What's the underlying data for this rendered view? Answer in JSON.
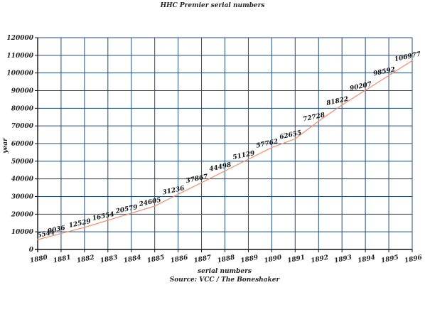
{
  "chart_data": {
    "type": "line",
    "title": "HHC Premier serial numbers",
    "xlabel": "serial numbers",
    "ylabel": "year",
    "source": "Source: VCC / The Boneshaker",
    "xlim": [
      1880,
      1896
    ],
    "ylim": [
      0,
      120000
    ],
    "x_ticks": [
      "1880",
      "1881",
      "1882",
      "1883",
      "1884",
      "1885",
      "1886",
      "1887",
      "1888",
      "1889",
      "1890",
      "1891",
      "1892",
      "1893",
      "1894",
      "1895",
      "1896"
    ],
    "y_ticks": [
      "0",
      "10000",
      "20000",
      "30000",
      "40000",
      "50000",
      "60000",
      "70000",
      "80000",
      "90000",
      "100000",
      "110000",
      "120000"
    ],
    "grid": true,
    "line_color": "#f08a6a",
    "grid_color": "#1f4e79",
    "series": [
      {
        "x": [
          1880,
          1881,
          1882,
          1883,
          1884,
          1885,
          1886,
          1887,
          1888,
          1889,
          1890,
          1891,
          1892,
          1893,
          1894,
          1895,
          1896
        ],
        "values": [
          5544,
          9036,
          12529,
          16554,
          20579,
          24605,
          31236,
          37867,
          44498,
          51129,
          57762,
          62655,
          72728,
          81822,
          90207,
          98592,
          106977
        ],
        "labels": [
          "5544",
          "9036",
          "12529",
          "16554",
          "20579",
          "24605",
          "31236",
          "37867",
          "44498",
          "51129",
          "57762",
          "62655",
          "72728",
          "81822",
          "90207",
          "98592",
          "106977"
        ]
      }
    ]
  }
}
